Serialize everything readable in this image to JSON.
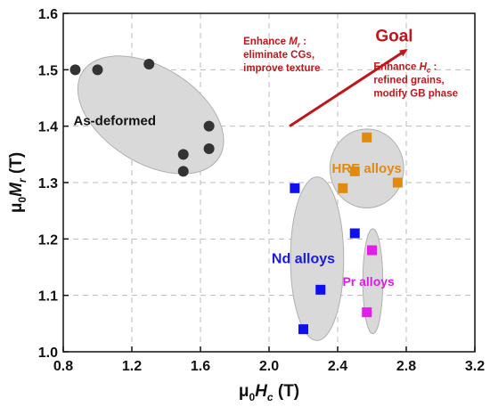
{
  "chart_data": {
    "type": "scatter",
    "title": "",
    "xlabel": {
      "prefix": "μ",
      "sub0": "0",
      "main": "H",
      "sub": "c",
      "unit": " (T)"
    },
    "ylabel": {
      "prefix": "μ",
      "sub0": "0",
      "main": "M",
      "sub": "r",
      "unit": " (T)"
    },
    "xlim": [
      0.8,
      3.2
    ],
    "ylim": [
      1.0,
      1.6
    ],
    "xticks": [
      "0.8",
      "1.2",
      "1.6",
      "2.0",
      "2.4",
      "2.8",
      "3.2"
    ],
    "yticks": [
      "1.0",
      "1.1",
      "1.2",
      "1.3",
      "1.4",
      "1.5",
      "1.6"
    ],
    "grid": true,
    "series": [
      {
        "name": "As-deformed",
        "marker": "circle",
        "color": "#333333",
        "label_color": "#111111",
        "points": [
          [
            0.87,
            1.5
          ],
          [
            1.0,
            1.5
          ],
          [
            1.3,
            1.51
          ],
          [
            1.5,
            1.35
          ],
          [
            1.5,
            1.32
          ],
          [
            1.65,
            1.4
          ],
          [
            1.65,
            1.36
          ]
        ]
      },
      {
        "name": "Nd alloys",
        "marker": "square",
        "color": "#1010ee",
        "label_color": "#1a1ae0",
        "points": [
          [
            2.15,
            1.29
          ],
          [
            2.5,
            1.21
          ],
          [
            2.3,
            1.11
          ],
          [
            2.2,
            1.04
          ]
        ]
      },
      {
        "name": "HRE alloys",
        "marker": "square",
        "color": "#e28a0c",
        "label_color": "#e28a0c",
        "points": [
          [
            2.57,
            1.38
          ],
          [
            2.5,
            1.32
          ],
          [
            2.43,
            1.29
          ],
          [
            2.75,
            1.3
          ]
        ]
      },
      {
        "name": "Pr alloys",
        "marker": "square",
        "color": "#e020e8",
        "label_color": "#d61fdf",
        "points": [
          [
            2.6,
            1.18
          ],
          [
            2.57,
            1.07
          ]
        ]
      }
    ],
    "annotations": {
      "goal": "Goal",
      "enhance_mr": {
        "prefix": "Enhance ",
        "main": "M",
        "sub": "r",
        "suffix": " :",
        "lines": [
          "eliminate CGs,",
          "improve texture"
        ]
      },
      "enhance_hc": {
        "prefix": "Enhance ",
        "main": "H",
        "sub": "c",
        "suffix": " :",
        "lines": [
          "refined grains,",
          "modify GB phase"
        ]
      }
    },
    "colors": {
      "arrow": "#c0161b",
      "ellipse_fill": "#d9d9d9",
      "ellipse_stroke": "#b0b0b0",
      "grid": "#bbbbbb"
    }
  }
}
